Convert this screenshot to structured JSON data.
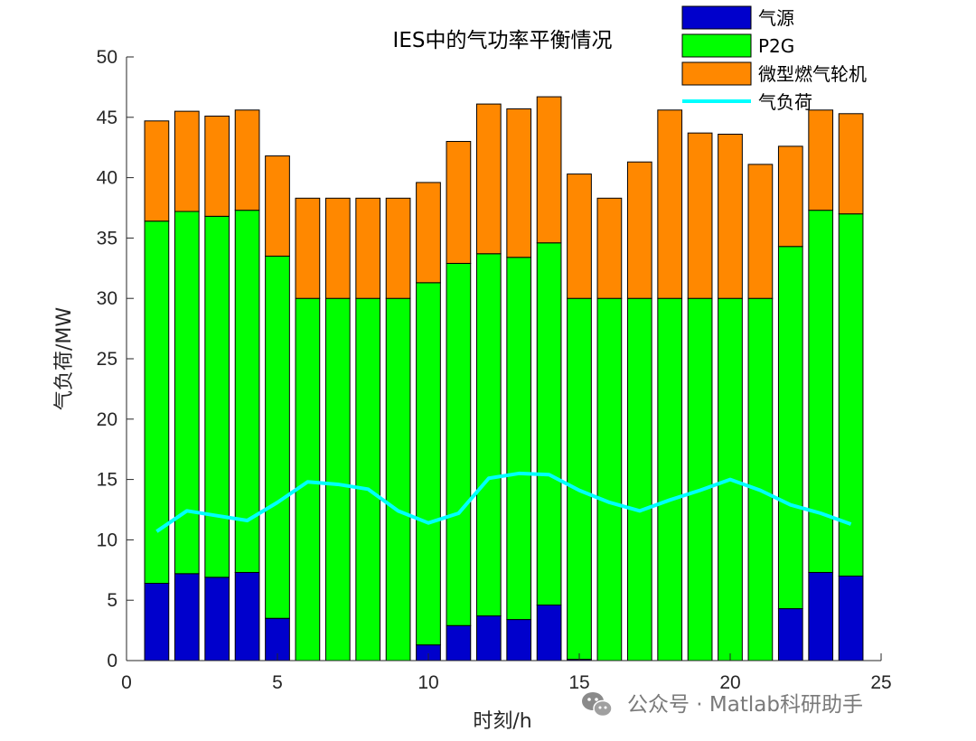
{
  "chart_data": {
    "type": "bar",
    "stacked": true,
    "title": "IES中的气功率平衡情况",
    "xlabel": "时刻/h",
    "ylabel": "气负荷/MW",
    "xlim": [
      0,
      25
    ],
    "ylim": [
      0,
      50
    ],
    "xticks": [
      0,
      5,
      10,
      15,
      20,
      25
    ],
    "yticks": [
      0,
      5,
      10,
      15,
      20,
      25,
      30,
      35,
      40,
      45,
      50
    ],
    "categories": [
      1,
      2,
      3,
      4,
      5,
      6,
      7,
      8,
      9,
      10,
      11,
      12,
      13,
      14,
      15,
      16,
      17,
      18,
      19,
      20,
      21,
      22,
      23,
      24
    ],
    "series": [
      {
        "name": "气源",
        "type": "bar",
        "color": "#0000CC",
        "values": [
          6.4,
          7.2,
          6.9,
          7.3,
          3.5,
          0,
          0,
          0,
          0,
          1.3,
          2.9,
          3.7,
          3.4,
          4.6,
          0.1,
          0,
          0,
          0,
          0,
          0,
          0,
          4.3,
          7.3,
          7.0
        ]
      },
      {
        "name": "P2G",
        "type": "bar",
        "color": "#00FF00",
        "values": [
          30.0,
          30.0,
          29.9,
          30.0,
          30.0,
          30.0,
          30.0,
          30.0,
          30.0,
          30.0,
          30.0,
          30.0,
          30.0,
          30.0,
          29.9,
          30.0,
          30.0,
          30.0,
          30.0,
          30.0,
          30.0,
          30.0,
          30.0,
          30.0
        ]
      },
      {
        "name": "微型燃气轮机",
        "type": "bar",
        "color": "#FF8800",
        "values": [
          8.3,
          8.3,
          8.3,
          8.3,
          8.3,
          8.3,
          8.3,
          8.3,
          8.3,
          8.3,
          10.1,
          12.4,
          12.3,
          12.1,
          10.3,
          8.3,
          11.3,
          15.6,
          13.7,
          13.6,
          11.1,
          8.3,
          8.3,
          8.3
        ]
      },
      {
        "name": "气负荷",
        "type": "line",
        "color": "#00FFFF",
        "values": [
          10.7,
          12.4,
          12.0,
          11.6,
          13.1,
          14.8,
          14.6,
          14.2,
          12.4,
          11.4,
          12.2,
          15.1,
          15.5,
          15.4,
          14.1,
          13.1,
          12.4,
          13.3,
          14.1,
          15.0,
          14.1,
          12.9,
          12.2,
          11.3
        ]
      }
    ],
    "legend_position": "top-right",
    "grid": false
  },
  "watermark": {
    "text": "公众号 · Matlab科研助手",
    "icon": "wechat-icon"
  }
}
